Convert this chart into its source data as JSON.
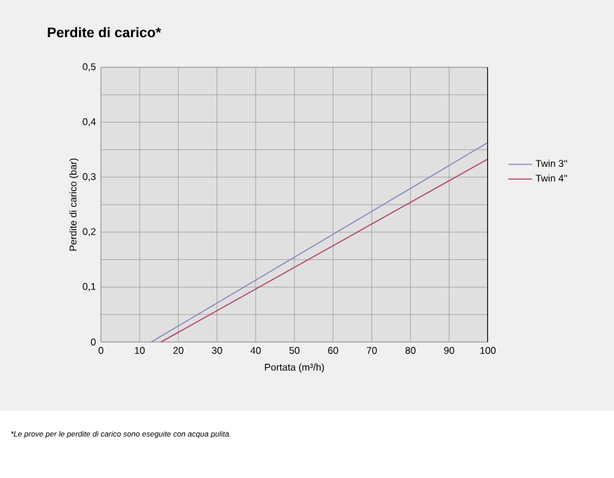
{
  "chart_data": {
    "type": "line",
    "title": "Perdite di carico*",
    "xlabel": "Portata (m³/h)",
    "ylabel": "Perdite di carico (bar)",
    "annotations": [
      "*Le prove per le perdite di carico sono eseguite con acqua pulita."
    ],
    "series": [
      {
        "name": "Twin 3''",
        "color": "#8a86bd",
        "x": [
          13,
          100
        ],
        "values": [
          0,
          0.363
        ]
      },
      {
        "name": "Twin 4''",
        "color": "#b0406e",
        "x": [
          15.5,
          100
        ],
        "values": [
          0,
          0.333
        ]
      }
    ],
    "xlim": [
      0,
      100
    ],
    "ylim": [
      0,
      0.5
    ],
    "xticks": [
      0,
      10,
      20,
      30,
      40,
      50,
      60,
      70,
      80,
      90,
      100
    ],
    "yticks": [
      {
        "value": 0,
        "label": "0"
      },
      {
        "value": 0.05,
        "label": null
      },
      {
        "value": 0.1,
        "label": "0,1"
      },
      {
        "value": 0.15,
        "label": null
      },
      {
        "value": 0.2,
        "label": "0,2"
      },
      {
        "value": 0.25,
        "label": null
      },
      {
        "value": 0.3,
        "label": "0,3"
      },
      {
        "value": 0.35,
        "label": null
      },
      {
        "value": 0.4,
        "label": "0,4"
      },
      {
        "value": 0.45,
        "label": null
      },
      {
        "value": 0.5,
        "label": "0,5"
      }
    ],
    "grid": true,
    "legend": "right",
    "marker": "none",
    "line_style": "solid"
  }
}
